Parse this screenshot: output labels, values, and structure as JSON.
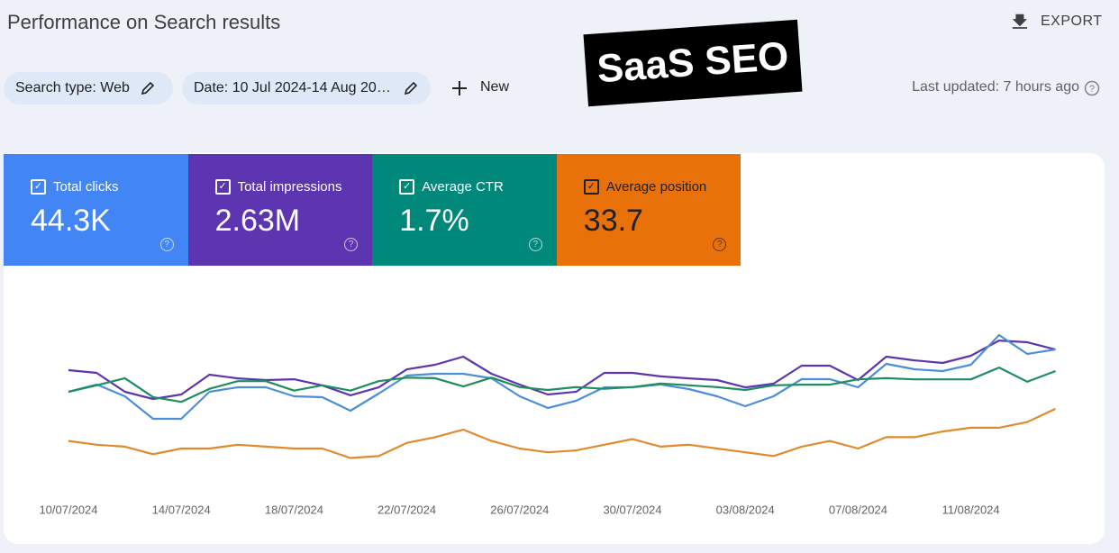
{
  "header": {
    "title": "Performance on Search results",
    "export": "EXPORT",
    "badge": "SaaS SEO"
  },
  "filters": {
    "search_type": "Search type: Web",
    "date": "Date: 10 Jul 2024-14 Aug 20…",
    "new": "New",
    "last_updated": "Last updated: 7 hours ago"
  },
  "metrics": [
    {
      "label": "Total clicks",
      "value": "44.3K",
      "color": "#4285f4"
    },
    {
      "label": "Total impressions",
      "value": "2.63M",
      "color": "#5e35b1"
    },
    {
      "label": "Average CTR",
      "value": "1.7%",
      "color": "#00897b"
    },
    {
      "label": "Average position",
      "value": "33.7",
      "color": "#e8710a"
    }
  ],
  "chart_data": {
    "type": "line",
    "categories": [
      "10/07/2024",
      null,
      null,
      null,
      "14/07/2024",
      null,
      null,
      null,
      "18/07/2024",
      null,
      null,
      null,
      "22/07/2024",
      null,
      null,
      null,
      "26/07/2024",
      null,
      null,
      null,
      "30/07/2024",
      null,
      null,
      null,
      "03/08/2024",
      null,
      null,
      null,
      "07/08/2024",
      null,
      null,
      null,
      "11/08/2024",
      null,
      null,
      null
    ],
    "series": [
      {
        "color": "#5e35b1",
        "ylim": [
          0,
          128000
        ],
        "values": [
          78600,
          76800,
          64000,
          59100,
          62200,
          75600,
          73100,
          71900,
          72500,
          68300,
          61600,
          67000,
          79200,
          82300,
          87800,
          76200,
          68900,
          62200,
          64000,
          76800,
          76800,
          74400,
          73100,
          71900,
          67000,
          69500,
          81700,
          81700,
          71900,
          87800,
          85300,
          83500,
          88400,
          98700,
          97500,
          92600
        ]
      },
      {
        "color": "#4a8fd8",
        "ylim": [
          0,
          2400
        ],
        "values": [
          1200,
          1292,
          1143,
          857,
          857,
          1200,
          1257,
          1257,
          1143,
          1131,
          960,
          1177,
          1406,
          1429,
          1429,
          1371,
          1143,
          994,
          1086,
          1257,
          1257,
          1292,
          1234,
          1143,
          1017,
          1143,
          1360,
          1360,
          1257,
          1554,
          1486,
          1463,
          1543,
          1920,
          1680,
          1737
        ]
      },
      {
        "color": "#1e8e5e",
        "ylim": [
          0,
          3.2
        ],
        "values": [
          1.6,
          1.71,
          1.83,
          1.51,
          1.43,
          1.65,
          1.78,
          1.78,
          1.62,
          1.71,
          1.62,
          1.78,
          1.84,
          1.83,
          1.69,
          1.84,
          1.68,
          1.63,
          1.68,
          1.65,
          1.68,
          1.74,
          1.71,
          1.68,
          1.63,
          1.71,
          1.72,
          1.72,
          1.81,
          1.83,
          1.81,
          1.81,
          1.81,
          2.01,
          1.77,
          1.95
        ]
      },
      {
        "color": "#e08a2e",
        "ylim": [
          36,
          26
        ],
        "values": [
          33.6,
          33.8,
          33.9,
          34.3,
          34.0,
          34.0,
          33.8,
          33.9,
          34.0,
          34.0,
          34.5,
          34.4,
          33.7,
          33.4,
          33.0,
          33.6,
          34.0,
          34.2,
          34.1,
          33.8,
          33.5,
          33.9,
          33.8,
          34.0,
          34.2,
          34.4,
          33.9,
          33.6,
          34.0,
          33.4,
          33.4,
          33.1,
          32.9,
          32.9,
          32.6,
          31.9
        ]
      }
    ]
  }
}
